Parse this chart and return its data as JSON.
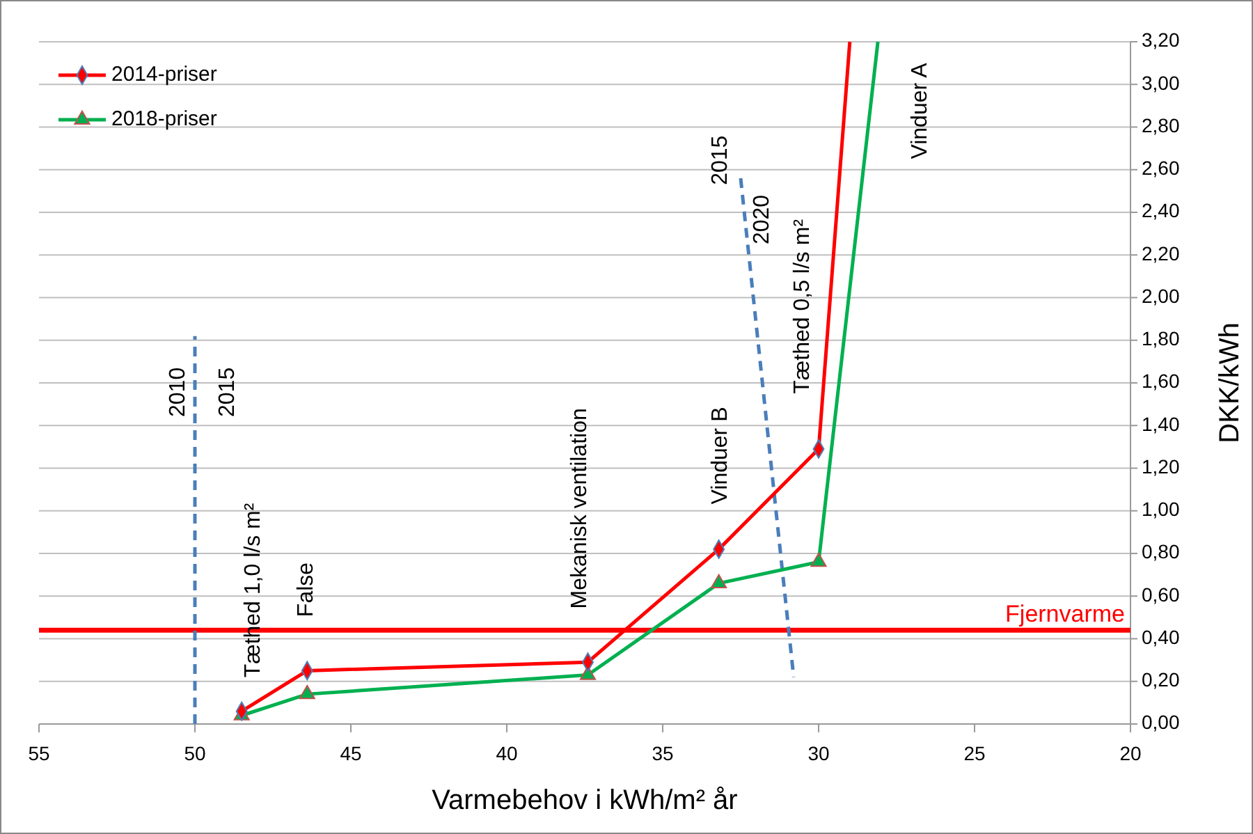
{
  "chart_data": {
    "type": "line",
    "xlabel": "Varmebehov i kWh/m² år",
    "ylabel": "DKK/kWh",
    "xlim": [
      55,
      20
    ],
    "xticks": [
      55,
      50,
      45,
      40,
      35,
      30,
      25,
      20
    ],
    "ylim": [
      0,
      3.2
    ],
    "yticks": [
      {
        "value": 0,
        "label": "0,00"
      },
      {
        "value": 0.2,
        "label": "0,20"
      },
      {
        "value": 0.4,
        "label": "0,40"
      },
      {
        "value": 0.6,
        "label": "0,60"
      },
      {
        "value": 0.8,
        "label": "0,80"
      },
      {
        "value": 1,
        "label": "1,00"
      },
      {
        "value": 1.2,
        "label": "1,20"
      },
      {
        "value": 1.4,
        "label": "1,40"
      },
      {
        "value": 1.6,
        "label": "1,60"
      },
      {
        "value": 1.8,
        "label": "1,80"
      },
      {
        "value": 2,
        "label": "2,00"
      },
      {
        "value": 2.2,
        "label": "2,20"
      },
      {
        "value": 2.4,
        "label": "2,40"
      },
      {
        "value": 2.6,
        "label": "2,60"
      },
      {
        "value": 2.8,
        "label": "2,80"
      },
      {
        "value": 3,
        "label": "3,00"
      },
      {
        "value": 3.2,
        "label": "3,20"
      }
    ],
    "grid": "y",
    "legend": "top left",
    "series": [
      {
        "name": "2014-priser",
        "color": "#ff0000",
        "marker": "diamond",
        "x": [
          48.5,
          46.4,
          37.4,
          33.2,
          30.0,
          29.0
        ],
        "values": [
          0.06,
          0.25,
          0.29,
          0.82,
          1.29,
          3.2
        ]
      },
      {
        "name": "2018-priser",
        "color": "#00b050",
        "marker": "triangle",
        "x": [
          48.5,
          46.4,
          37.4,
          33.2,
          30.0,
          28.1
        ],
        "values": [
          0.04,
          0.14,
          0.23,
          0.66,
          0.76,
          3.2
        ]
      },
      {
        "color": "#4a7ebb",
        "marker": "none",
        "line_style": "dashed",
        "x": [
          50,
          50
        ],
        "values": [
          0,
          1.82
        ]
      },
      {
        "color": "#4a7ebb",
        "marker": "none",
        "line_style": "dashed",
        "x": [
          32.5,
          30.8
        ],
        "values": [
          2.56,
          0.22
        ]
      }
    ],
    "ref_lines": [
      {
        "axis": "y",
        "value": 0.44,
        "label": "Fjernvarme",
        "color": "#ff0000"
      }
    ],
    "annotations": [
      "2010",
      "2015",
      "Tæthed 1,0 l/s m²",
      "False",
      "Mekanisk ventilation",
      "Vinduer B",
      "2015",
      "2020",
      "Tæthed 0,5 l/s m²",
      "Vinduer A"
    ]
  }
}
